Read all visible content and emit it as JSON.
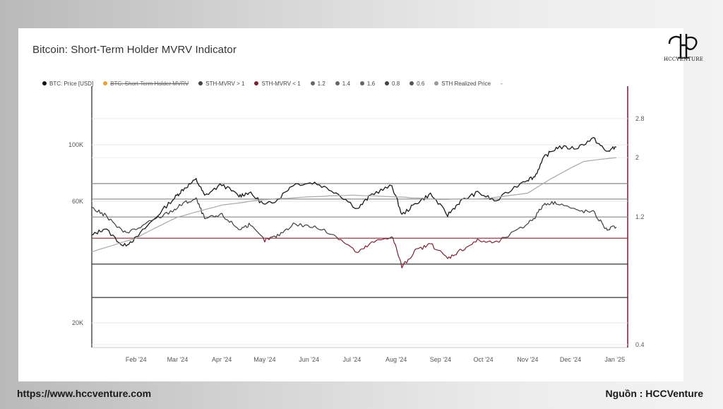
{
  "header": {
    "title": "Bitcoin: Short-Term Holder MVRV Indicator"
  },
  "brand": {
    "logo_text": "HCCVENTURE"
  },
  "footer": {
    "url": "https://www.hccventure.com",
    "source": "Nguồn : HCCVenture"
  },
  "legend": [
    {
      "label": "BTC: Price [USD]",
      "color": "#111111",
      "struck": false
    },
    {
      "label": "BTC: Short-Term Holder MVRV",
      "color": "#f0a030",
      "struck": true
    },
    {
      "label": "STH-MVRV > 1",
      "color": "#444444",
      "struck": false
    },
    {
      "label": "STH-MVRV < 1",
      "color": "#7a1f2e",
      "struck": false
    },
    {
      "label": "1.2",
      "color": "#666666",
      "struck": false
    },
    {
      "label": "1.4",
      "color": "#666666",
      "struck": false
    },
    {
      "label": "1.6",
      "color": "#666666",
      "struck": false
    },
    {
      "label": "0.8",
      "color": "#444444",
      "struck": false
    },
    {
      "label": "0.6",
      "color": "#555555",
      "struck": false
    },
    {
      "label": "STH Realized Price",
      "color": "#999999",
      "struck": false
    },
    {
      "label": "-",
      "color": "",
      "struck": false
    }
  ],
  "chart_data": {
    "type": "line",
    "x_ticks": [
      "Feb '24",
      "Mar '24",
      "Apr '24",
      "May '24",
      "Jun '24",
      "Jul '24",
      "Aug '24",
      "Sep '24",
      "Oct '24",
      "Nov '24",
      "Dec '24",
      "Jan '25"
    ],
    "y_left": {
      "scale": "log",
      "ticks": [
        "20K",
        "60K",
        "100K"
      ],
      "unit": "USD"
    },
    "y_right": {
      "scale": "log",
      "ticks": [
        "0.4",
        "1.2",
        "2",
        "2.8"
      ]
    },
    "threshold_lines": [
      1.6,
      1.4,
      1.2,
      1.0,
      0.8,
      0.6
    ],
    "series": [
      {
        "name": "BTC: Price [USD]",
        "color": "#1a1a1a",
        "axis": "left",
        "x": [
          "2024-01-01",
          "2024-01-10",
          "2024-01-23",
          "2024-02-01",
          "2024-02-15",
          "2024-02-28",
          "2024-03-05",
          "2024-03-14",
          "2024-03-20",
          "2024-04-01",
          "2024-04-13",
          "2024-04-20",
          "2024-05-01",
          "2024-05-10",
          "2024-05-21",
          "2024-06-05",
          "2024-06-20",
          "2024-07-05",
          "2024-07-15",
          "2024-07-29",
          "2024-08-05",
          "2024-08-15",
          "2024-08-25",
          "2024-09-06",
          "2024-09-15",
          "2024-09-27",
          "2024-10-10",
          "2024-10-29",
          "2024-11-06",
          "2024-11-13",
          "2024-11-22",
          "2024-12-05",
          "2024-12-17",
          "2024-12-26",
          "2025-01-02"
        ],
        "values": [
          44000,
          47000,
          40000,
          43000,
          52000,
          62000,
          67000,
          73000,
          63000,
          70000,
          63000,
          65000,
          58000,
          61000,
          70000,
          71000,
          65000,
          56000,
          64000,
          69000,
          53000,
          59000,
          64000,
          53000,
          60000,
          65000,
          60000,
          72000,
          75000,
          90000,
          98000,
          97000,
          106000,
          94000,
          98000
        ]
      },
      {
        "name": "BTC: Short-Term Holder MVRV",
        "color": "#3a3a3a",
        "axis": "right",
        "x": [
          "2024-01-01",
          "2024-01-10",
          "2024-01-23",
          "2024-02-01",
          "2024-02-15",
          "2024-02-28",
          "2024-03-05",
          "2024-03-14",
          "2024-03-20",
          "2024-04-01",
          "2024-04-13",
          "2024-04-20",
          "2024-05-01",
          "2024-05-10",
          "2024-05-21",
          "2024-06-05",
          "2024-06-20",
          "2024-07-05",
          "2024-07-15",
          "2024-07-29",
          "2024-08-05",
          "2024-08-15",
          "2024-08-25",
          "2024-09-06",
          "2024-09-15",
          "2024-09-27",
          "2024-10-10",
          "2024-10-29",
          "2024-11-06",
          "2024-11-13",
          "2024-11-22",
          "2024-12-05",
          "2024-12-17",
          "2024-12-26",
          "2025-01-02"
        ],
        "values": [
          1.3,
          1.22,
          1.05,
          1.08,
          1.18,
          1.28,
          1.35,
          1.4,
          1.18,
          1.22,
          1.08,
          1.12,
          0.98,
          1.02,
          1.13,
          1.1,
          1.02,
          0.88,
          0.96,
          1.02,
          0.78,
          0.9,
          0.95,
          0.84,
          0.9,
          0.98,
          0.96,
          1.1,
          1.2,
          1.35,
          1.36,
          1.27,
          1.25,
          1.08,
          1.1
        ]
      },
      {
        "name": "STH Realized Price",
        "color": "#a8a8a8",
        "axis": "left",
        "x": [
          "2024-01-01",
          "2024-02-01",
          "2024-03-01",
          "2024-04-01",
          "2024-05-01",
          "2024-06-01",
          "2024-07-01",
          "2024-08-01",
          "2024-09-01",
          "2024-10-01",
          "2024-11-01",
          "2024-11-20",
          "2024-12-10",
          "2025-01-02"
        ],
        "values": [
          38000,
          43000,
          52000,
          58000,
          61000,
          62500,
          63500,
          62500,
          61000,
          61500,
          64500,
          75000,
          86000,
          89000
        ]
      }
    ]
  }
}
